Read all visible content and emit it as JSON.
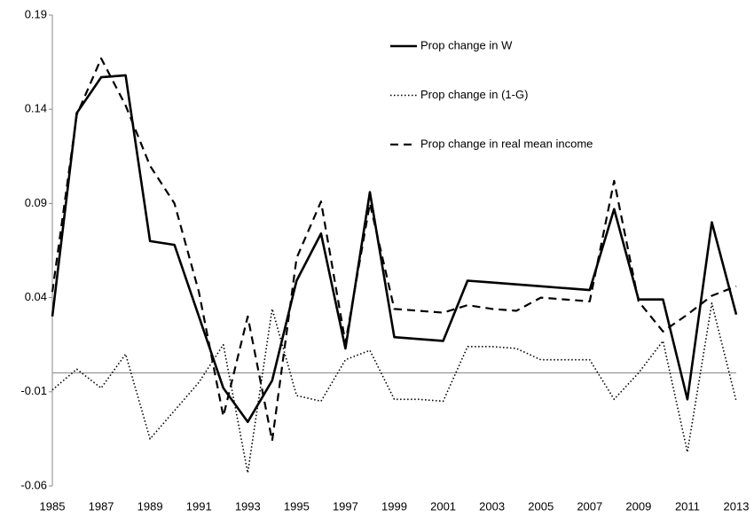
{
  "chart_data": {
    "type": "line",
    "x": [
      1985,
      1986,
      1987,
      1988,
      1989,
      1990,
      1991,
      1992,
      1993,
      1994,
      1995,
      1996,
      1997,
      1998,
      1999,
      2000,
      2001,
      2002,
      2003,
      2004,
      2005,
      2006,
      2007,
      2008,
      2009,
      2010,
      2011,
      2012,
      2013
    ],
    "series": [
      {
        "name": "Prop change in W",
        "color": "#000000",
        "style": "solid",
        "values": [
          0.03,
          0.138,
          0.157,
          0.158,
          0.07,
          0.068,
          0.03,
          -0.008,
          -0.026,
          -0.004,
          0.049,
          0.074,
          0.013,
          0.096,
          0.019,
          0.018,
          0.017,
          0.049,
          0.048,
          0.047,
          0.046,
          0.045,
          0.044,
          0.087,
          0.039,
          0.039,
          -0.014,
          0.08,
          0.031
        ]
      },
      {
        "name": "Prop change in (1-G)",
        "color": "#000000",
        "style": "dotted",
        "values": [
          -0.009,
          0.002,
          -0.008,
          0.01,
          -0.035,
          -0.02,
          -0.005,
          0.015,
          -0.053,
          0.034,
          -0.012,
          -0.015,
          0.007,
          0.012,
          -0.014,
          -0.014,
          -0.015,
          0.014,
          0.014,
          0.013,
          0.007,
          0.007,
          0.007,
          -0.014,
          0.0,
          0.017,
          -0.042,
          0.037,
          -0.015
        ]
      },
      {
        "name": "Prop change in real mean income",
        "color": "#000000",
        "style": "dashed",
        "values": [
          0.043,
          0.137,
          0.167,
          0.142,
          0.11,
          0.09,
          0.043,
          -0.023,
          0.03,
          -0.036,
          0.061,
          0.091,
          0.016,
          0.09,
          0.034,
          0.033,
          0.032,
          0.036,
          0.034,
          0.033,
          0.04,
          0.039,
          0.038,
          0.102,
          0.038,
          0.022,
          0.031,
          0.041,
          0.046
        ]
      }
    ],
    "xlim": [
      1985,
      2013
    ],
    "xticks": [
      1985,
      1987,
      1989,
      1991,
      1993,
      1995,
      1997,
      1999,
      2001,
      2003,
      2005,
      2007,
      2009,
      2011,
      2013
    ],
    "ylim": [
      -0.06,
      0.19
    ],
    "yticks": [
      -0.06,
      -0.01,
      0.04,
      0.09,
      0.14,
      0.19
    ],
    "legend": "top-center"
  }
}
